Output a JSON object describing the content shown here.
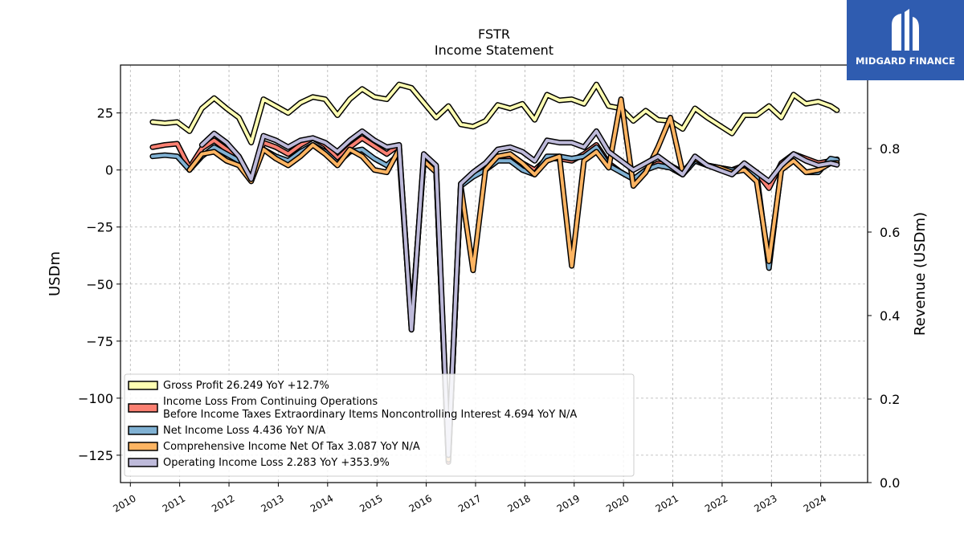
{
  "brand": {
    "name": "MIDGARD FINANCE"
  },
  "chart_data": {
    "type": "line",
    "title": "FSTR",
    "subtitle": "Income Statement",
    "ylabel": "USDm",
    "y2label": "Revenue (USDm)",
    "ylim": [
      -137,
      46
    ],
    "y2lim": [
      0.0,
      1.0
    ],
    "yticks": [
      25,
      0,
      -25,
      -50,
      -75,
      -100,
      -125
    ],
    "y2ticks": [
      0.0,
      0.2,
      0.4,
      0.6,
      0.8
    ],
    "ytick_labels": [
      "25",
      "0",
      "−25",
      "−50",
      "−75",
      "−100",
      "−125"
    ],
    "y2tick_labels": [
      "0.0",
      "0.2",
      "0.4",
      "0.6",
      "0.8"
    ],
    "xlim": [
      2009.8,
      2024.95
    ],
    "xticks": [
      "2010",
      "2011",
      "2012",
      "2013",
      "2014",
      "2015",
      "2016",
      "2017",
      "2018",
      "2019",
      "2020",
      "2021",
      "2022",
      "2023",
      "2024"
    ],
    "grid": true,
    "legend_position": "lower-left",
    "series": [
      {
        "name": "Gross Profit",
        "legend_label": [
          "Gross Profit  26.249 YoY +12.7%"
        ],
        "color": "#ffffb2",
        "x": [
          2010.45,
          2010.7,
          2010.95,
          2011.2,
          2011.45,
          2011.7,
          2011.95,
          2012.2,
          2012.45,
          2012.7,
          2012.95,
          2013.2,
          2013.45,
          2013.7,
          2013.95,
          2014.2,
          2014.45,
          2014.7,
          2014.95,
          2015.2,
          2015.45,
          2015.7,
          2015.95,
          2016.2,
          2016.45,
          2016.7,
          2016.95,
          2017.2,
          2017.45,
          2017.7,
          2017.95,
          2018.2,
          2018.45,
          2018.7,
          2018.95,
          2019.2,
          2019.45,
          2019.7,
          2019.95,
          2020.2,
          2020.45,
          2020.7,
          2020.95,
          2021.2,
          2021.45,
          2021.7,
          2021.95,
          2022.2,
          2022.45,
          2022.7,
          2022.95,
          2023.2,
          2023.45,
          2023.7,
          2023.95,
          2024.2,
          2024.33
        ],
        "values": [
          21,
          20.5,
          21,
          17,
          27,
          31.5,
          27,
          23,
          12,
          31,
          28,
          25,
          29.5,
          32,
          31,
          24,
          31,
          35.5,
          32,
          31,
          37.5,
          36,
          29.5,
          23,
          28,
          20,
          19,
          21.5,
          28.5,
          27,
          29,
          22,
          33,
          30.5,
          31,
          29,
          37.5,
          28,
          27,
          21.5,
          26,
          22,
          21.5,
          18,
          27,
          23,
          19.5,
          16,
          24,
          24,
          28,
          23,
          33,
          29,
          30,
          28,
          26.2
        ]
      },
      {
        "name": "Income Loss From Continuing Operations Before Income Taxes Extraordinary Items Noncontrolling Interest",
        "legend_label": [
          "Income Loss From Continuing Operations",
          "Before Income Taxes Extraordinary Items Noncontrolling Interest  4.694 YoY N/A"
        ],
        "color": "#fb8072",
        "x": [
          2010.45,
          2010.7,
          2010.95,
          2011.2,
          2011.45,
          2011.7,
          2011.95,
          2012.2,
          2012.45,
          2012.7,
          2012.95,
          2013.2,
          2013.45,
          2013.7,
          2013.95,
          2014.2,
          2014.45,
          2014.7,
          2014.95,
          2015.2,
          2015.45,
          2015.7,
          2015.95,
          2016.2,
          2016.45,
          2016.7,
          2016.95,
          2017.2,
          2017.45,
          2017.7,
          2017.95,
          2018.2,
          2018.45,
          2018.7,
          2018.95,
          2019.2,
          2019.45,
          2019.7,
          2019.95,
          2020.2,
          2020.45,
          2020.7,
          2020.95,
          2021.2,
          2021.45,
          2021.7,
          2021.95,
          2022.2,
          2022.45,
          2022.7,
          2022.95,
          2023.2,
          2023.45,
          2023.7,
          2023.95,
          2024.2,
          2024.33
        ],
        "values": [
          10,
          11,
          11.5,
          1,
          9.5,
          13,
          9,
          6,
          -4,
          12,
          10,
          7,
          11,
          14,
          11,
          5,
          10,
          14,
          10.5,
          7,
          11,
          -70,
          6,
          0,
          -128,
          -6,
          -2,
          2,
          6,
          6,
          3,
          0,
          5,
          5,
          4,
          7,
          11,
          3,
          -1,
          -4,
          0,
          3,
          2,
          -1,
          5,
          2,
          1,
          0,
          2,
          -1,
          -8,
          3,
          7,
          5,
          3,
          4,
          4.7
        ]
      },
      {
        "name": "Net Income Loss",
        "legend_label": [
          "Net Income Loss  4.436 YoY N/A"
        ],
        "color": "#80b1d3",
        "x": [
          2010.45,
          2010.7,
          2010.95,
          2011.2,
          2011.45,
          2011.7,
          2011.95,
          2012.2,
          2012.45,
          2012.7,
          2012.95,
          2013.2,
          2013.45,
          2013.7,
          2013.95,
          2014.2,
          2014.45,
          2014.7,
          2014.95,
          2015.2,
          2015.45,
          2015.7,
          2015.95,
          2016.2,
          2016.45,
          2016.7,
          2016.95,
          2017.2,
          2017.45,
          2017.7,
          2017.95,
          2018.2,
          2018.45,
          2018.7,
          2018.95,
          2019.2,
          2019.45,
          2019.7,
          2019.95,
          2020.2,
          2020.45,
          2020.7,
          2020.95,
          2021.2,
          2021.45,
          2021.7,
          2021.95,
          2022.2,
          2022.45,
          2022.7,
          2022.95,
          2023.2,
          2023.45,
          2023.7,
          2023.95,
          2024.2,
          2024.33
        ],
        "values": [
          6,
          6.5,
          6,
          0,
          6,
          10,
          7,
          4,
          -4,
          9,
          6,
          4,
          8,
          11,
          8,
          3,
          8,
          9,
          5,
          2,
          7,
          -68,
          5,
          0,
          -127,
          -7,
          -3,
          0,
          4,
          4,
          0,
          -2,
          6,
          6,
          5,
          6,
          10,
          2,
          -1,
          -4,
          0,
          2,
          1,
          -2,
          4,
          2,
          1,
          0,
          0,
          -2,
          -43,
          1,
          4,
          -1,
          -1,
          5,
          4.4
        ]
      },
      {
        "name": "Comprehensive Income Net Of Tax",
        "legend_label": [
          "Comprehensive Income Net Of Tax  3.087 YoY N/A"
        ],
        "color": "#fdb462",
        "x": [
          2011.2,
          2011.45,
          2011.7,
          2011.95,
          2012.2,
          2012.45,
          2012.7,
          2012.95,
          2013.2,
          2013.45,
          2013.7,
          2013.95,
          2014.2,
          2014.45,
          2014.7,
          2014.95,
          2015.2,
          2015.45,
          2015.7,
          2015.95,
          2016.2,
          2016.45,
          2016.7,
          2016.95,
          2017.2,
          2017.45,
          2017.7,
          2017.95,
          2018.2,
          2018.45,
          2018.7,
          2018.95,
          2019.2,
          2019.45,
          2019.7,
          2019.95,
          2020.2,
          2020.45,
          2020.7,
          2020.95,
          2021.2,
          2021.45,
          2021.7,
          2021.95,
          2022.2,
          2022.45,
          2022.7,
          2022.95,
          2023.2,
          2023.45,
          2023.7,
          2023.95,
          2024.2,
          2024.33
        ],
        "values": [
          0,
          7,
          8,
          4,
          2,
          -5,
          9,
          5,
          2,
          6,
          11,
          7,
          2,
          9,
          6,
          0,
          -1,
          9,
          -67,
          4,
          -1,
          -127,
          -7,
          -44,
          0,
          6,
          7,
          3,
          -2,
          4,
          6,
          -42,
          4,
          8,
          1,
          31,
          -7,
          -1,
          10,
          23,
          -1,
          5,
          2,
          1,
          -1,
          0,
          -5,
          -40,
          0,
          4,
          -1,
          0,
          3,
          3.1
        ]
      },
      {
        "name": "Operating Income Loss",
        "legend_label": [
          "Operating Income Loss  2.283 YoY +353.9%"
        ],
        "color": "#bebada",
        "x": [
          2011.45,
          2011.7,
          2011.95,
          2012.2,
          2012.45,
          2012.7,
          2012.95,
          2013.2,
          2013.45,
          2013.7,
          2013.95,
          2014.2,
          2014.45,
          2014.7,
          2014.95,
          2015.2,
          2015.45,
          2015.7,
          2015.95,
          2016.2,
          2016.45,
          2016.7,
          2016.95,
          2017.2,
          2017.45,
          2017.7,
          2017.95,
          2018.2,
          2018.45,
          2018.7,
          2018.95,
          2019.2,
          2019.45,
          2019.7,
          2019.95,
          2020.2,
          2020.45,
          2020.7,
          2020.95,
          2021.2,
          2021.45,
          2021.7,
          2021.95,
          2022.2,
          2022.45,
          2022.7,
          2022.95,
          2023.2,
          2023.45,
          2023.7,
          2023.95,
          2024.2,
          2024.33
        ],
        "values": [
          11,
          16,
          12,
          6,
          -4,
          15,
          13,
          10,
          13,
          14,
          12,
          8,
          13,
          17,
          13,
          10,
          11,
          -70,
          7,
          2,
          -125,
          -6,
          -1,
          3,
          9,
          10,
          8,
          4,
          13,
          12,
          12,
          10,
          17,
          8,
          4,
          0,
          3,
          6,
          2,
          -2,
          6,
          2,
          0,
          -2,
          3,
          -1,
          -5,
          2,
          7,
          4,
          2,
          3,
          2.3
        ]
      }
    ]
  }
}
